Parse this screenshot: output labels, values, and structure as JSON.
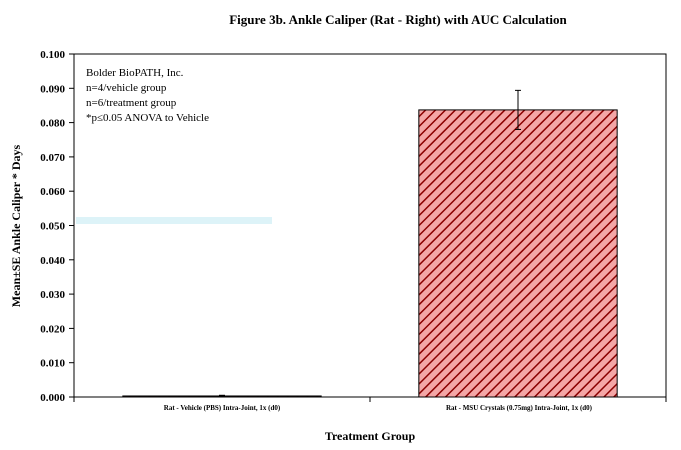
{
  "chart_data": {
    "type": "bar",
    "title": "Figure 3b.  Ankle Caliper (Rat - Right) with AUC Calculation",
    "xlabel": "Treatment Group",
    "ylabel": "Mean±SE Ankle Caliper  * Days",
    "ylim": [
      0,
      0.1
    ],
    "yticks": [
      "0.000",
      "0.010",
      "0.020",
      "0.030",
      "0.040",
      "0.050",
      "0.060",
      "0.070",
      "0.080",
      "0.090",
      "0.100"
    ],
    "categories": [
      "Rat - Vehicle (PBS) Intra-Joint, 1x (d0)",
      "Rat - MSU Crystals (0.75mg) Intra-Joint, 1x (d0)"
    ],
    "values": [
      0.0003,
      0.0837
    ],
    "errors": [
      0.0002,
      0.0057
    ],
    "grid": false,
    "bar_fill": "#F4A6A6",
    "bar_hatch": "#8B0000",
    "annotations": [
      "Bolder BioPATH, Inc.",
      "n=4/vehicle group",
      "n=6/treatment group",
      "*p≤0.05 ANOVA to Vehicle"
    ]
  }
}
